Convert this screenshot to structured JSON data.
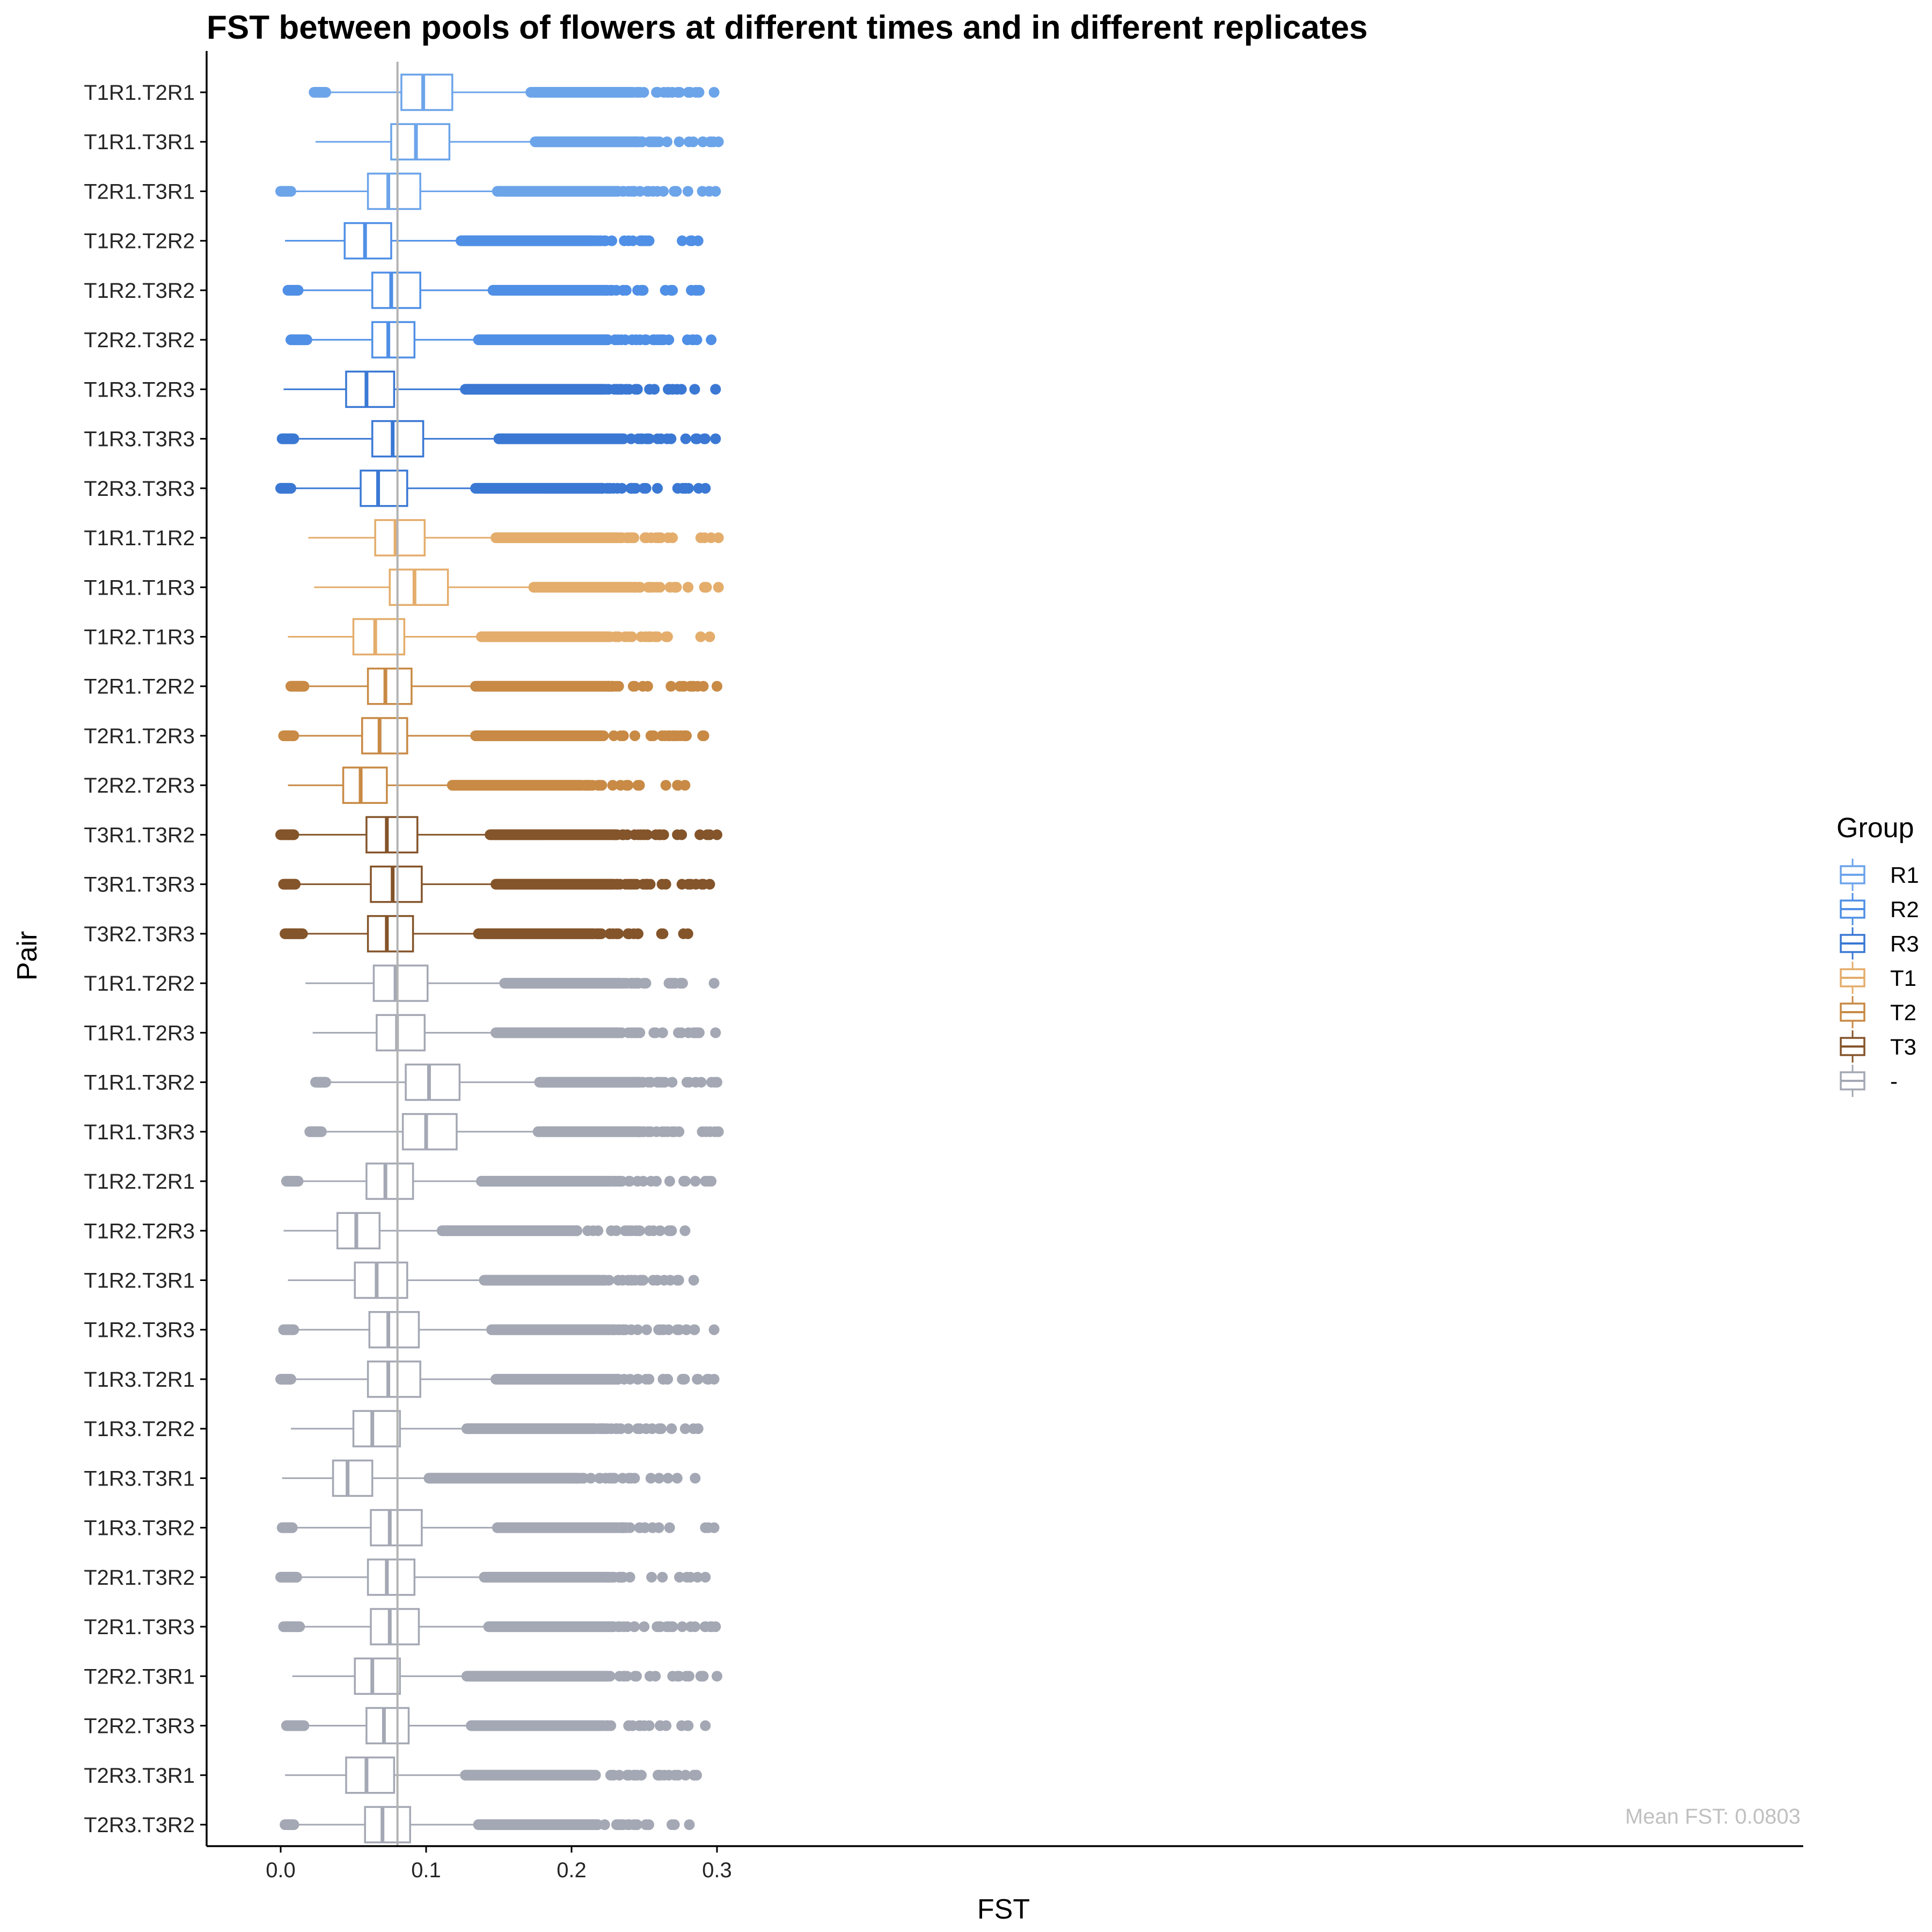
{
  "chart_data": {
    "type": "boxplot",
    "orientation": "horizontal",
    "title": "FST between pools of flowers at different times and in different replicates",
    "xlabel": "FST",
    "ylabel": "Pair",
    "xlim": [
      -0.015,
      0.315
    ],
    "xticks": [
      0.0,
      0.1,
      0.2,
      0.3
    ],
    "xtick_labels": [
      "0.0",
      "0.1",
      "0.2",
      "0.3"
    ],
    "reference_line": {
      "x": 0.0803,
      "color": "#b3b3b3"
    },
    "annotation": {
      "text": "Mean FST: 0.0803",
      "color": "#c0c0c0",
      "placement": "bottom-right"
    },
    "legend": {
      "title": "Group",
      "placement": "right",
      "entries": [
        {
          "label": "R1",
          "color": "#6ca4ea"
        },
        {
          "label": "R2",
          "color": "#4f8fe6"
        },
        {
          "label": "R3",
          "color": "#3a78d4"
        },
        {
          "label": "T1",
          "color": "#e4ad6c"
        },
        {
          "label": "T2",
          "color": "#c88a45"
        },
        {
          "label": "T3",
          "color": "#84542a"
        },
        {
          "label": "-",
          "color": "#a4a8b4"
        }
      ]
    },
    "grid": false,
    "series": [
      {
        "pair": "T1R1.T2R1",
        "group": "R1",
        "whisker_low": 0.025,
        "q1": 0.083,
        "median": 0.098,
        "q3": 0.118,
        "whisker_high": 0.172,
        "outliers_low": [
          0.023,
          0.031
        ],
        "outliers_high": [
          0.172,
          0.298
        ]
      },
      {
        "pair": "T1R1.T3R1",
        "group": "R1",
        "whisker_low": 0.024,
        "q1": 0.076,
        "median": 0.093,
        "q3": 0.116,
        "whisker_high": 0.175,
        "outliers_low": [],
        "outliers_high": [
          0.175,
          0.301
        ]
      },
      {
        "pair": "T2R1.T3R1",
        "group": "R1",
        "whisker_low": 0.007,
        "q1": 0.06,
        "median": 0.074,
        "q3": 0.096,
        "whisker_high": 0.149,
        "outliers_low": [
          0.0,
          0.007
        ],
        "outliers_high": [
          0.149,
          0.299
        ]
      },
      {
        "pair": "T1R2.T2R2",
        "group": "R2",
        "whisker_low": 0.003,
        "q1": 0.044,
        "median": 0.058,
        "q3": 0.076,
        "whisker_high": 0.124,
        "outliers_low": [],
        "outliers_high": [
          0.124,
          0.287
        ]
      },
      {
        "pair": "T1R2.T3R2",
        "group": "R2",
        "whisker_low": 0.012,
        "q1": 0.063,
        "median": 0.076,
        "q3": 0.096,
        "whisker_high": 0.146,
        "outliers_low": [
          0.005,
          0.012
        ],
        "outliers_high": [
          0.146,
          0.288
        ]
      },
      {
        "pair": "T2R2.T3R2",
        "group": "R2",
        "whisker_low": 0.018,
        "q1": 0.063,
        "median": 0.074,
        "q3": 0.092,
        "whisker_high": 0.136,
        "outliers_low": [
          0.007,
          0.018
        ],
        "outliers_high": [
          0.136,
          0.296
        ]
      },
      {
        "pair": "T1R3.T2R3",
        "group": "R3",
        "whisker_low": 0.002,
        "q1": 0.045,
        "median": 0.059,
        "q3": 0.078,
        "whisker_high": 0.127,
        "outliers_low": [],
        "outliers_high": [
          0.127,
          0.299
        ]
      },
      {
        "pair": "T1R3.T3R3",
        "group": "R3",
        "whisker_low": 0.009,
        "q1": 0.063,
        "median": 0.077,
        "q3": 0.098,
        "whisker_high": 0.15,
        "outliers_low": [
          0.001,
          0.009
        ],
        "outliers_high": [
          0.15,
          0.299
        ]
      },
      {
        "pair": "T2R3.T3R3",
        "group": "R3",
        "whisker_low": 0.007,
        "q1": 0.055,
        "median": 0.067,
        "q3": 0.087,
        "whisker_high": 0.134,
        "outliers_low": [
          0.0,
          0.007
        ],
        "outliers_high": [
          0.134,
          0.292
        ]
      },
      {
        "pair": "T1R1.T1R2",
        "group": "T1",
        "whisker_low": 0.019,
        "q1": 0.065,
        "median": 0.079,
        "q3": 0.099,
        "whisker_high": 0.148,
        "outliers_low": [],
        "outliers_high": [
          0.148,
          0.301
        ]
      },
      {
        "pair": "T1R1.T1R3",
        "group": "T1",
        "whisker_low": 0.023,
        "q1": 0.075,
        "median": 0.092,
        "q3": 0.115,
        "whisker_high": 0.174,
        "outliers_low": [],
        "outliers_high": [
          0.174,
          0.301
        ]
      },
      {
        "pair": "T1R2.T1R3",
        "group": "T1",
        "whisker_low": 0.005,
        "q1": 0.05,
        "median": 0.065,
        "q3": 0.085,
        "whisker_high": 0.138,
        "outliers_low": [],
        "outliers_high": [
          0.138,
          0.295
        ]
      },
      {
        "pair": "T2R1.T2R2",
        "group": "T2",
        "whisker_low": 0.016,
        "q1": 0.06,
        "median": 0.072,
        "q3": 0.09,
        "whisker_high": 0.134,
        "outliers_low": [
          0.007,
          0.016
        ],
        "outliers_high": [
          0.134,
          0.3
        ]
      },
      {
        "pair": "T2R1.T2R3",
        "group": "T2",
        "whisker_low": 0.009,
        "q1": 0.056,
        "median": 0.068,
        "q3": 0.087,
        "whisker_high": 0.134,
        "outliers_low": [
          0.002,
          0.009
        ],
        "outliers_high": [
          0.134,
          0.291
        ]
      },
      {
        "pair": "T2R2.T2R3",
        "group": "T2",
        "whisker_low": 0.005,
        "q1": 0.043,
        "median": 0.055,
        "q3": 0.073,
        "whisker_high": 0.118,
        "outliers_low": [],
        "outliers_high": [
          0.118,
          0.278
        ]
      },
      {
        "pair": "T3R1.T3R2",
        "group": "T3",
        "whisker_low": 0.009,
        "q1": 0.059,
        "median": 0.073,
        "q3": 0.094,
        "whisker_high": 0.144,
        "outliers_low": [
          0.0,
          0.009
        ],
        "outliers_high": [
          0.144,
          0.3
        ]
      },
      {
        "pair": "T3R1.T3R3",
        "group": "T3",
        "whisker_low": 0.01,
        "q1": 0.062,
        "median": 0.077,
        "q3": 0.097,
        "whisker_high": 0.148,
        "outliers_low": [
          0.002,
          0.01
        ],
        "outliers_high": [
          0.148,
          0.295
        ]
      },
      {
        "pair": "T3R2.T3R3",
        "group": "T3",
        "whisker_low": 0.015,
        "q1": 0.06,
        "median": 0.073,
        "q3": 0.091,
        "whisker_high": 0.136,
        "outliers_low": [
          0.003,
          0.015
        ],
        "outliers_high": [
          0.136,
          0.28
        ]
      },
      {
        "pair": "T1R1.T2R2",
        "group": "-",
        "whisker_low": 0.017,
        "q1": 0.064,
        "median": 0.079,
        "q3": 0.101,
        "whisker_high": 0.154,
        "outliers_low": [],
        "outliers_high": [
          0.154,
          0.298
        ]
      },
      {
        "pair": "T1R1.T2R3",
        "group": "-",
        "whisker_low": 0.022,
        "q1": 0.066,
        "median": 0.08,
        "q3": 0.099,
        "whisker_high": 0.148,
        "outliers_low": [],
        "outliers_high": [
          0.148,
          0.299
        ]
      },
      {
        "pair": "T1R1.T3R2",
        "group": "-",
        "whisker_low": 0.031,
        "q1": 0.086,
        "median": 0.102,
        "q3": 0.123,
        "whisker_high": 0.178,
        "outliers_low": [
          0.024,
          0.031
        ],
        "outliers_high": [
          0.178,
          0.3
        ]
      },
      {
        "pair": "T1R1.T3R3",
        "group": "-",
        "whisker_low": 0.028,
        "q1": 0.084,
        "median": 0.1,
        "q3": 0.121,
        "whisker_high": 0.177,
        "outliers_low": [
          0.02,
          0.028
        ],
        "outliers_high": [
          0.177,
          0.301
        ]
      },
      {
        "pair": "T1R2.T2R1",
        "group": "-",
        "whisker_low": 0.012,
        "q1": 0.059,
        "median": 0.072,
        "q3": 0.091,
        "whisker_high": 0.138,
        "outliers_low": [
          0.004,
          0.012
        ],
        "outliers_high": [
          0.138,
          0.296
        ]
      },
      {
        "pair": "T1R2.T2R3",
        "group": "-",
        "whisker_low": 0.002,
        "q1": 0.039,
        "median": 0.052,
        "q3": 0.068,
        "whisker_high": 0.111,
        "outliers_low": [],
        "outliers_high": [
          0.111,
          0.278
        ]
      },
      {
        "pair": "T1R2.T3R1",
        "group": "-",
        "whisker_low": 0.005,
        "q1": 0.051,
        "median": 0.066,
        "q3": 0.087,
        "whisker_high": 0.14,
        "outliers_low": [],
        "outliers_high": [
          0.14,
          0.284
        ]
      },
      {
        "pair": "T1R2.T3R3",
        "group": "-",
        "whisker_low": 0.009,
        "q1": 0.061,
        "median": 0.074,
        "q3": 0.095,
        "whisker_high": 0.145,
        "outliers_low": [
          0.002,
          0.009
        ],
        "outliers_high": [
          0.145,
          0.298
        ]
      },
      {
        "pair": "T1R3.T2R1",
        "group": "-",
        "whisker_low": 0.007,
        "q1": 0.06,
        "median": 0.074,
        "q3": 0.096,
        "whisker_high": 0.148,
        "outliers_low": [
          0.0,
          0.007
        ],
        "outliers_high": [
          0.148,
          0.298
        ]
      },
      {
        "pair": "T1R3.T2R2",
        "group": "-",
        "whisker_low": 0.007,
        "q1": 0.05,
        "median": 0.063,
        "q3": 0.082,
        "whisker_high": 0.128,
        "outliers_low": [],
        "outliers_high": [
          0.128,
          0.287
        ]
      },
      {
        "pair": "T1R3.T3R1",
        "group": "-",
        "whisker_low": 0.001,
        "q1": 0.036,
        "median": 0.046,
        "q3": 0.063,
        "whisker_high": 0.102,
        "outliers_low": [],
        "outliers_high": [
          0.102,
          0.285
        ]
      },
      {
        "pair": "T1R3.T3R2",
        "group": "-",
        "whisker_low": 0.008,
        "q1": 0.062,
        "median": 0.075,
        "q3": 0.097,
        "whisker_high": 0.149,
        "outliers_low": [
          0.001,
          0.008
        ],
        "outliers_high": [
          0.149,
          0.298
        ]
      },
      {
        "pair": "T2R1.T3R2",
        "group": "-",
        "whisker_low": 0.011,
        "q1": 0.06,
        "median": 0.073,
        "q3": 0.092,
        "whisker_high": 0.14,
        "outliers_low": [
          0.0,
          0.011
        ],
        "outliers_high": [
          0.14,
          0.292
        ]
      },
      {
        "pair": "T2R1.T3R3",
        "group": "-",
        "whisker_low": 0.013,
        "q1": 0.062,
        "median": 0.075,
        "q3": 0.095,
        "whisker_high": 0.143,
        "outliers_low": [
          0.002,
          0.013
        ],
        "outliers_high": [
          0.143,
          0.299
        ]
      },
      {
        "pair": "T2R2.T3R1",
        "group": "-",
        "whisker_low": 0.008,
        "q1": 0.051,
        "median": 0.063,
        "q3": 0.082,
        "whisker_high": 0.128,
        "outliers_low": [],
        "outliers_high": [
          0.128,
          0.3
        ]
      },
      {
        "pair": "T2R2.T3R3",
        "group": "-",
        "whisker_low": 0.016,
        "q1": 0.059,
        "median": 0.071,
        "q3": 0.088,
        "whisker_high": 0.131,
        "outliers_low": [
          0.004,
          0.016
        ],
        "outliers_high": [
          0.131,
          0.292
        ]
      },
      {
        "pair": "T2R3.T3R1",
        "group": "-",
        "whisker_low": 0.003,
        "q1": 0.045,
        "median": 0.059,
        "q3": 0.078,
        "whisker_high": 0.127,
        "outliers_low": [],
        "outliers_high": [
          0.127,
          0.286
        ]
      },
      {
        "pair": "T2R3.T3R2",
        "group": "-",
        "whisker_low": 0.009,
        "q1": 0.058,
        "median": 0.07,
        "q3": 0.089,
        "whisker_high": 0.136,
        "outliers_low": [
          0.003,
          0.009
        ],
        "outliers_high": [
          0.136,
          0.281
        ]
      }
    ]
  }
}
